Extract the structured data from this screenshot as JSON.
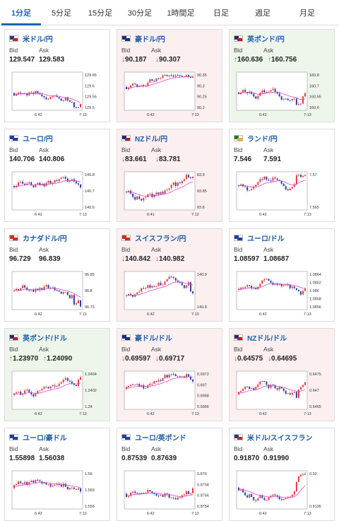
{
  "tabs": [
    {
      "label": "1分足",
      "active": true
    },
    {
      "label": "5分足"
    },
    {
      "label": "15分足"
    },
    {
      "label": "30分足"
    },
    {
      "label": "1時間足"
    },
    {
      "label": "日足"
    },
    {
      "label": "週足"
    },
    {
      "label": "月足"
    }
  ],
  "bid_label": "Bid",
  "ask_label": "Ask",
  "colors": {
    "up_bar": "#e8383d",
    "down_bar": "#2a3ea8",
    "ma": "#d945c8",
    "accent": "#1e63b8",
    "down_arrow": "#d03030",
    "up_arrow": "#2a9a3a"
  },
  "cards": [
    {
      "name": "米ドル/円",
      "flag": "us",
      "bid": "129.547",
      "ask": "129.583",
      "dir": "none",
      "yticks": [
        "129.65",
        "129.6",
        "129.55",
        "129.5"
      ],
      "xticks": [
        "6:42",
        "7:13"
      ]
    },
    {
      "name": "豪ドル/円",
      "flag": "au",
      "bid": "90.187",
      "ask": "90.307",
      "dir": "down",
      "yticks": [
        "90.35",
        "90.3",
        "90.25",
        "90.2"
      ],
      "xticks": [
        "6:42",
        "7:13"
      ]
    },
    {
      "name": "英ポンド/円",
      "flag": "gb",
      "bid": "160.636",
      "ask": "160.756",
      "dir": "up",
      "yticks": [
        "160.8",
        "160.7",
        "160.65",
        "160.6"
      ],
      "xticks": [
        "6:42",
        "7:13"
      ]
    },
    {
      "name": "ユーロ/円",
      "flag": "eu",
      "bid": "140.706",
      "ask": "140.806",
      "dir": "none",
      "yticks": [
        "140.8",
        "140.7",
        "140.6"
      ],
      "xticks": [
        "6:42",
        "7:13"
      ]
    },
    {
      "name": "NZドル/円",
      "flag": "nz",
      "bid": "83.661",
      "ask": "83.781",
      "dir": "down",
      "yticks": [
        "83.9",
        "83.85",
        "83.8"
      ],
      "xticks": [
        "6:41",
        "7:12"
      ]
    },
    {
      "name": "ランド/円",
      "flag": "za",
      "bid": "7.546",
      "ask": "7.591",
      "dir": "none",
      "yticks": [
        "7.57",
        "7.565"
      ],
      "xticks": [
        "6:42",
        "7:13"
      ]
    },
    {
      "name": "カナダドル/円",
      "flag": "ca",
      "bid": "96.729",
      "ask": "96.839",
      "dir": "none",
      "yticks": [
        "96.85",
        "96.8",
        "96.75"
      ],
      "xticks": [
        "6:42",
        "7:13"
      ]
    },
    {
      "name": "スイスフラン/円",
      "flag": "ch",
      "bid": "140.842",
      "ask": "140.982",
      "dir": "down",
      "yticks": [
        "140.9",
        "140.8"
      ],
      "xticks": [
        "6:42",
        "7:13"
      ]
    },
    {
      "name": "ユーロ/ドル",
      "flag": "eu",
      "bid": "1.08597",
      "ask": "1.08687",
      "dir": "none",
      "yticks": [
        "1.0864",
        "1.0862",
        "1.086",
        "1.0858",
        "1.0856"
      ],
      "xticks": [
        "6:42",
        "7:13"
      ]
    },
    {
      "name": "英ポンド/ドル",
      "flag": "gb",
      "bid": "1.23970",
      "ask": "1.24090",
      "dir": "up",
      "yticks": [
        "1.2404",
        "1.2402",
        "1.24"
      ],
      "xticks": [
        "6:42",
        "7:13"
      ]
    },
    {
      "name": "豪ドル/ドル",
      "flag": "au",
      "bid": "0.69597",
      "ask": "0.69717",
      "dir": "down",
      "yticks": [
        "0.6972",
        "0.697",
        "0.6968",
        "0.6966"
      ],
      "xticks": [
        "6:42",
        "7:13"
      ]
    },
    {
      "name": "NZドル/ドル",
      "flag": "nz",
      "bid": "0.64575",
      "ask": "0.64695",
      "dir": "down",
      "yticks": [
        "0.6475",
        "0.647",
        "0.6465"
      ],
      "xticks": [
        "6:42",
        "7:13"
      ]
    },
    {
      "name": "ユーロ/豪ドル",
      "flag": "eu",
      "bid": "1.55898",
      "ask": "1.56038",
      "dir": "none",
      "yticks": [
        "1.56",
        "1.559",
        "1.558"
      ],
      "xticks": [
        "6:42",
        "7:13"
      ]
    },
    {
      "name": "ユーロ/英ポンド",
      "flag": "eu",
      "bid": "0.87539",
      "ask": "0.87639",
      "dir": "none",
      "yticks": [
        "0.876",
        "0.8758",
        "0.8756",
        "0.8754"
      ],
      "xticks": [
        "6:42",
        "7:13"
      ]
    },
    {
      "name": "米ドル/スイスフラン",
      "flag": "us",
      "bid": "0.91870",
      "ask": "0.91990",
      "dir": "none",
      "yticks": [
        "0.92",
        "0.9195"
      ],
      "xticks": [
        "6:42",
        "7:13"
      ]
    }
  ]
}
